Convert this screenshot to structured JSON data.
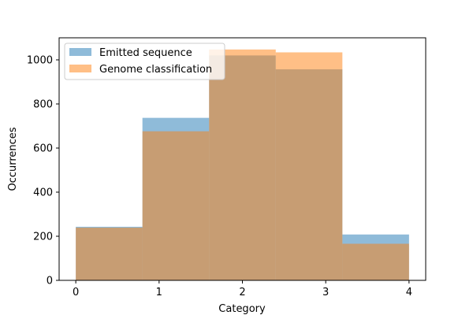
{
  "chart_data": {
    "type": "bar",
    "title": "",
    "xlabel": "Category",
    "ylabel": "Occurrences",
    "xlim": [
      -0.2,
      4.2
    ],
    "ylim": [
      0,
      1100
    ],
    "bin_edges": [
      0,
      0.8,
      1.6,
      2.4,
      3.2,
      4.0
    ],
    "xticks": [
      0,
      1,
      2,
      3,
      4
    ],
    "yticks": [
      0,
      200,
      400,
      600,
      800,
      1000
    ],
    "series": [
      {
        "name": "Emitted sequence",
        "color": "#1f77b4",
        "alpha": 0.5,
        "values": [
          243,
          737,
          1020,
          957,
          208
        ]
      },
      {
        "name": "Genome classification",
        "color": "#ff7f0e",
        "alpha": 0.5,
        "values": [
          239,
          676,
          1047,
          1034,
          166
        ]
      }
    ],
    "legend_position": "top-left",
    "grid": false
  }
}
